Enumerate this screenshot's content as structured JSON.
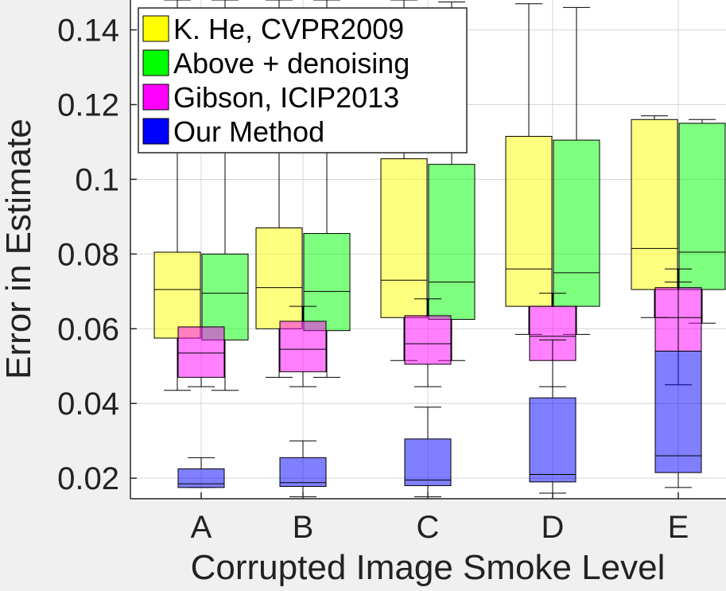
{
  "chart_data": {
    "type": "box",
    "xlabel": "Corrupted Image Smoke Level",
    "ylabel": "Error in Estimate",
    "categories": [
      "A",
      "B",
      "C",
      "D",
      "E"
    ],
    "ylim": [
      0.0145,
      0.148
    ],
    "yticks": [
      0.02,
      0.04,
      0.06,
      0.08,
      0.1,
      0.12,
      0.14
    ],
    "ytick_labels": [
      "0.02",
      "0.04",
      "0.06",
      "0.08",
      "0.1",
      "0.12",
      "0.14"
    ],
    "grid": true,
    "legend_position": "top-left",
    "series": [
      {
        "name": "K. He, CVPR2009",
        "color": "#ffff00",
        "boxes": [
          {
            "whisker_low": 0.0435,
            "q1": 0.0575,
            "median": 0.0705,
            "q3": 0.0805,
            "whisker_high": 0.148
          },
          {
            "whisker_low": 0.047,
            "q1": 0.06,
            "median": 0.071,
            "q3": 0.087,
            "whisker_high": 0.148
          },
          {
            "whisker_low": 0.0515,
            "q1": 0.063,
            "median": 0.073,
            "q3": 0.1055,
            "whisker_high": 0.148
          },
          {
            "whisker_low": 0.0585,
            "q1": 0.066,
            "median": 0.076,
            "q3": 0.1115,
            "whisker_high": 0.147
          },
          {
            "whisker_low": 0.063,
            "q1": 0.0705,
            "median": 0.0815,
            "q3": 0.116,
            "whisker_high": 0.117
          }
        ]
      },
      {
        "name": "Above + denoising",
        "color": "#00ff00",
        "boxes": [
          {
            "whisker_low": 0.0435,
            "q1": 0.057,
            "median": 0.0695,
            "q3": 0.08,
            "whisker_high": 0.148
          },
          {
            "whisker_low": 0.047,
            "q1": 0.0595,
            "median": 0.07,
            "q3": 0.0855,
            "whisker_high": 0.148
          },
          {
            "whisker_low": 0.0515,
            "q1": 0.0625,
            "median": 0.0725,
            "q3": 0.104,
            "whisker_high": 0.1475
          },
          {
            "whisker_low": 0.0585,
            "q1": 0.066,
            "median": 0.075,
            "q3": 0.1105,
            "whisker_high": 0.146
          },
          {
            "whisker_low": 0.0615,
            "q1": 0.0705,
            "median": 0.0805,
            "q3": 0.115,
            "whisker_high": 0.116
          }
        ]
      },
      {
        "name": "Gibson, ICIP2013",
        "color": "#ff00ff",
        "boxes": [
          {
            "whisker_low": 0.0445,
            "q1": 0.047,
            "median": 0.0535,
            "q3": 0.0605,
            "whisker_high": 0.0605
          },
          {
            "whisker_low": 0.0445,
            "q1": 0.0485,
            "median": 0.0545,
            "q3": 0.062,
            "whisker_high": 0.066
          },
          {
            "whisker_low": 0.0445,
            "q1": 0.0505,
            "median": 0.056,
            "q3": 0.0635,
            "whisker_high": 0.068
          },
          {
            "whisker_low": 0.0445,
            "q1": 0.0515,
            "median": 0.058,
            "q3": 0.066,
            "whisker_high": 0.0695
          },
          {
            "whisker_low": 0.045,
            "q1": 0.054,
            "median": 0.063,
            "q3": 0.071,
            "whisker_high": 0.076
          }
        ]
      },
      {
        "name": "Our Method",
        "color": "#0000ff",
        "boxes": [
          {
            "whisker_low": 0.0175,
            "q1": 0.0175,
            "median": 0.0185,
            "q3": 0.0225,
            "whisker_high": 0.0255
          },
          {
            "whisker_low": 0.015,
            "q1": 0.0178,
            "median": 0.0188,
            "q3": 0.0255,
            "whisker_high": 0.03
          },
          {
            "whisker_low": 0.015,
            "q1": 0.018,
            "median": 0.0195,
            "q3": 0.0305,
            "whisker_high": 0.039
          },
          {
            "whisker_low": 0.016,
            "q1": 0.019,
            "median": 0.021,
            "q3": 0.0415,
            "whisker_high": 0.057
          },
          {
            "whisker_low": 0.0175,
            "q1": 0.0215,
            "median": 0.026,
            "q3": 0.054,
            "whisker_high": 0.0725
          }
        ]
      }
    ]
  }
}
